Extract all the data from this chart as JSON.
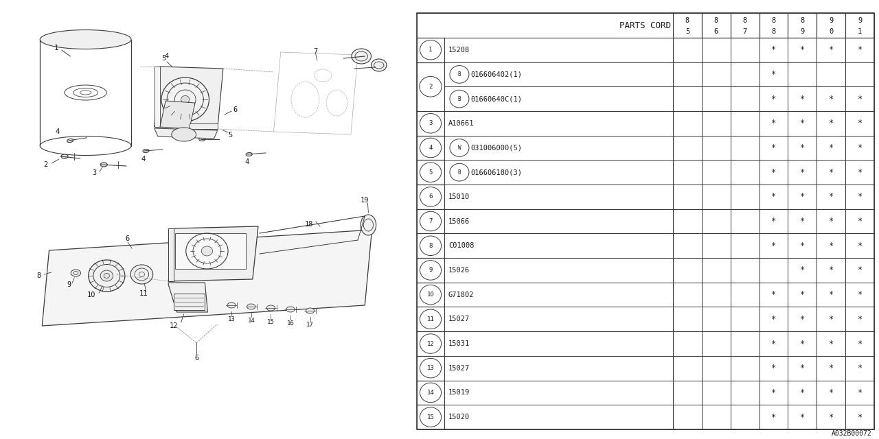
{
  "bg_color": "#ffffff",
  "table_title": "PARTS CORD",
  "col_headers": [
    "85",
    "86",
    "87",
    "88",
    "89",
    "90",
    "91"
  ],
  "rows": [
    {
      "num": "1",
      "prefix": "",
      "code": "15208",
      "marks": [
        0,
        0,
        0,
        1,
        1,
        1,
        1
      ]
    },
    {
      "num": "2",
      "prefix": "B",
      "code": "016606402(1)",
      "marks": [
        0,
        0,
        0,
        1,
        0,
        0,
        0
      ]
    },
    {
      "num": "2b",
      "prefix": "B",
      "code": "01660640C(1)",
      "marks": [
        0,
        0,
        0,
        1,
        1,
        1,
        1
      ]
    },
    {
      "num": "3",
      "prefix": "",
      "code": "A10661",
      "marks": [
        0,
        0,
        0,
        1,
        1,
        1,
        1
      ]
    },
    {
      "num": "4",
      "prefix": "W",
      "code": "031006000(5)",
      "marks": [
        0,
        0,
        0,
        1,
        1,
        1,
        1
      ]
    },
    {
      "num": "5",
      "prefix": "B",
      "code": "016606180(3)",
      "marks": [
        0,
        0,
        0,
        1,
        1,
        1,
        1
      ]
    },
    {
      "num": "6",
      "prefix": "",
      "code": "15010",
      "marks": [
        0,
        0,
        0,
        1,
        1,
        1,
        1
      ]
    },
    {
      "num": "7",
      "prefix": "",
      "code": "15066",
      "marks": [
        0,
        0,
        0,
        1,
        1,
        1,
        1
      ]
    },
    {
      "num": "8",
      "prefix": "",
      "code": "C01008",
      "marks": [
        0,
        0,
        0,
        1,
        1,
        1,
        1
      ]
    },
    {
      "num": "9",
      "prefix": "",
      "code": "15026",
      "marks": [
        0,
        0,
        0,
        0,
        1,
        1,
        1
      ]
    },
    {
      "num": "10",
      "prefix": "",
      "code": "G71802",
      "marks": [
        0,
        0,
        0,
        1,
        1,
        1,
        1
      ]
    },
    {
      "num": "11",
      "prefix": "",
      "code": "15027",
      "marks": [
        0,
        0,
        0,
        1,
        1,
        1,
        1
      ]
    },
    {
      "num": "12",
      "prefix": "",
      "code": "15031",
      "marks": [
        0,
        0,
        0,
        1,
        1,
        1,
        1
      ]
    },
    {
      "num": "13",
      "prefix": "",
      "code": "15027",
      "marks": [
        0,
        0,
        0,
        1,
        1,
        1,
        1
      ]
    },
    {
      "num": "14",
      "prefix": "",
      "code": "15019",
      "marks": [
        0,
        0,
        0,
        1,
        1,
        1,
        1
      ]
    },
    {
      "num": "15",
      "prefix": "",
      "code": "15020",
      "marks": [
        0,
        0,
        0,
        1,
        1,
        1,
        1
      ]
    }
  ],
  "watermark": "A032B00072",
  "line_color": "#3a3a3a",
  "text_color": "#1a1a1a"
}
